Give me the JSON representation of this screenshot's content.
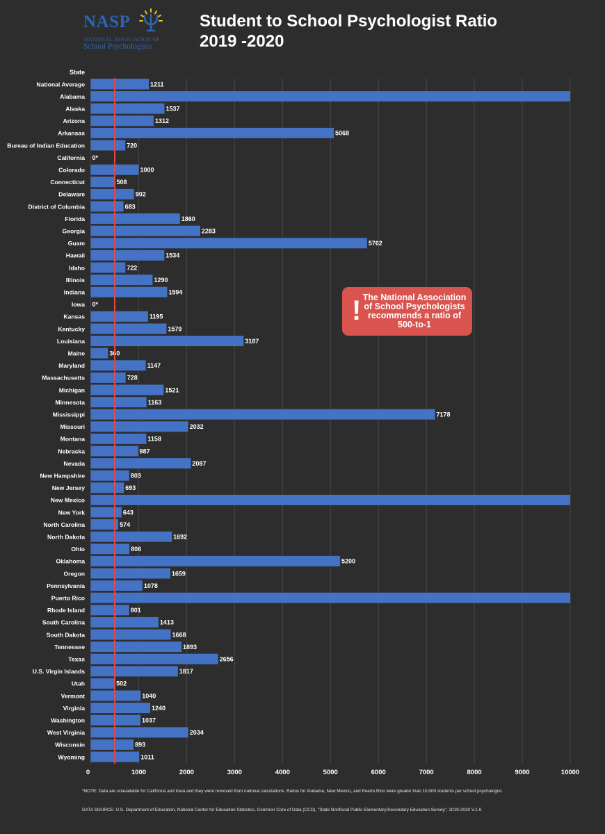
{
  "header": {
    "logo": {
      "brand": "NASP",
      "org_line1": "NATIONAL ASSOCIATION OF",
      "org_line2": "School Psychologists"
    },
    "title_line1": "Student to School Psychologist Ratio",
    "title_line2": "2019 -2020"
  },
  "callout": {
    "text": "The National Association of School Psychologists recommends a ratio of 500-to-1",
    "icon": "exclamation-icon"
  },
  "footnote": "*NOTE: Data are unavailable for California and Iowa and they were removed from national calculations. Ratios for Alabama, New Mexico, and Puerto Rico were greater than 10,000 students per school psychologist.",
  "source": "DATA SOURCE: U.S. Department of Education, National Center for Education Statistics, Common Core of Data (CCD), \"State Nonfiscal Public Elementary/Secondary Education Survey\", 2019-2020 V.1.9",
  "colors": {
    "background": "#2d2d2d",
    "bar": "#4472c4",
    "reference_line": "#e0484c",
    "callout": "#d9534f",
    "logo": "#2f64b4"
  },
  "chart_data": {
    "type": "bar",
    "orientation": "horizontal",
    "category_header": "State",
    "xlim": [
      0,
      10000
    ],
    "x_ticks": [
      "0",
      "1000",
      "2000",
      "3000",
      "4000",
      "5000",
      "6000",
      "7000",
      "8000",
      "9000",
      "10000"
    ],
    "grid": true,
    "reference_line": 500,
    "categories": [
      "National Average",
      "Alabama",
      "Alaska",
      "Arizona",
      "Arkansas",
      "Bureau of Indian Education",
      "California",
      "Colorado",
      "Connecticut",
      "Delaware",
      "District of Columbia",
      "Florida",
      "Georgia",
      "Guam",
      "Hawaii",
      "Idaho",
      "Illinois",
      "Indiana",
      "Iowa",
      "Kansas",
      "Kentucky",
      "Louisiana",
      "Maine",
      "Maryland",
      "Massachusetts",
      "Michigan",
      "Minnesota",
      "Mississippi",
      "Missouri",
      "Montana",
      "Nebraska",
      "Nevada",
      "New Hampshire",
      "New Jersey",
      "New Mexico",
      "New York",
      "North Carolina",
      "North Dakota",
      "Ohio",
      "Oklahoma",
      "Oregon",
      "Pennsylvania",
      "Puerto Rico",
      "Rhode Island",
      "South Carolina",
      "South Dakota",
      "Tennessee",
      "Texas",
      "U.S. Virgin Islands",
      "Utah",
      "Vermont",
      "Virginia",
      "Washington",
      "West Virginia",
      "Wisconsin",
      "Wyoming"
    ],
    "values": [
      1211,
      10000,
      1537,
      1312,
      5068,
      720,
      0,
      1000,
      508,
      902,
      683,
      1860,
      2283,
      5762,
      1534,
      722,
      1290,
      1594,
      0,
      1195,
      1579,
      3187,
      360,
      1147,
      728,
      1521,
      1163,
      7178,
      2032,
      1158,
      987,
      2087,
      803,
      693,
      10000,
      643,
      574,
      1692,
      806,
      5200,
      1659,
      1078,
      10000,
      801,
      1413,
      1668,
      1893,
      2656,
      1817,
      502,
      1040,
      1240,
      1037,
      2034,
      893,
      1011
    ],
    "data_labels": [
      "1211",
      "",
      "1537",
      "1312",
      "5068",
      "720",
      "0*",
      "1000",
      "508",
      "902",
      "683",
      "1860",
      "2283",
      "5762",
      "1534",
      "722",
      "1290",
      "1594",
      "0*",
      "1195",
      "1579",
      "3187",
      "360",
      "1147",
      "728",
      "1521",
      "1163",
      "7178",
      "2032",
      "1158",
      "987",
      "2087",
      "803",
      "693",
      "",
      "643",
      "574",
      "1692",
      "806",
      "5200",
      "1659",
      "1078",
      "",
      "801",
      "1413",
      "1668",
      "1893",
      "2656",
      "1817",
      "502",
      "1040",
      "1240",
      "1037",
      "2034",
      "893",
      "1011"
    ]
  }
}
